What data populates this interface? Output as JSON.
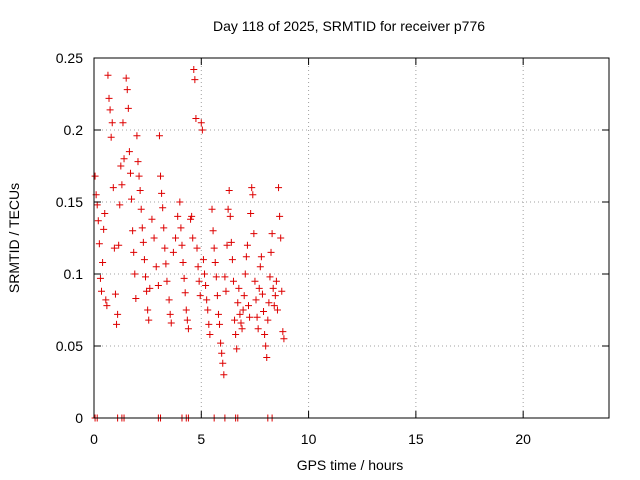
{
  "chart_data": {
    "type": "scatter",
    "title": "Day 118 of 2025, SRMTID for receiver p776",
    "xlabel": "GPS time / hours",
    "ylabel": "SRMTID / TECUs",
    "xlim": [
      0,
      24
    ],
    "ylim": [
      0,
      0.25
    ],
    "xticks": [
      0,
      5,
      10,
      15,
      20
    ],
    "xtick_labels": [
      "0",
      "5",
      "10",
      "15",
      "20"
    ],
    "yticks": [
      0,
      0.05,
      0.1,
      0.15,
      0.2,
      0.25
    ],
    "ytick_labels": [
      "0",
      "0.05",
      "0.1",
      "0.15",
      "0.2",
      "0.25"
    ],
    "grid": true,
    "marker": "+",
    "series": [
      {
        "name": "SRMTID",
        "color": "#dd0000",
        "points": [
          [
            0.05,
            0.168
          ],
          [
            0.1,
            0.155
          ],
          [
            0.15,
            0.148
          ],
          [
            0.2,
            0.137
          ],
          [
            0.25,
            0.121
          ],
          [
            0.3,
            0.097
          ],
          [
            0.35,
            0.088
          ],
          [
            0.4,
            0.108
          ],
          [
            0.45,
            0.131
          ],
          [
            0.5,
            0.142
          ],
          [
            0.55,
            0.082
          ],
          [
            0.6,
            0.078
          ],
          [
            0.65,
            0.238
          ],
          [
            0.7,
            0.222
          ],
          [
            0.75,
            0.214
          ],
          [
            0.8,
            0.195
          ],
          [
            0.85,
            0.205
          ],
          [
            0.9,
            0.16
          ],
          [
            0.95,
            0.118
          ],
          [
            1.0,
            0.086
          ],
          [
            1.05,
            0.065
          ],
          [
            1.1,
            0.072
          ],
          [
            1.15,
            0.12
          ],
          [
            1.2,
            0.148
          ],
          [
            1.25,
            0.175
          ],
          [
            1.3,
            0.162
          ],
          [
            1.35,
            0.205
          ],
          [
            1.4,
            0.18
          ],
          [
            1.5,
            0.236
          ],
          [
            1.55,
            0.228
          ],
          [
            1.6,
            0.215
          ],
          [
            1.65,
            0.185
          ],
          [
            1.7,
            0.17
          ],
          [
            1.75,
            0.152
          ],
          [
            1.8,
            0.13
          ],
          [
            1.85,
            0.115
          ],
          [
            1.9,
            0.1
          ],
          [
            1.95,
            0.083
          ],
          [
            2.0,
            0.196
          ],
          [
            2.05,
            0.178
          ],
          [
            2.1,
            0.168
          ],
          [
            2.15,
            0.158
          ],
          [
            2.2,
            0.145
          ],
          [
            2.25,
            0.132
          ],
          [
            2.3,
            0.122
          ],
          [
            2.35,
            0.11
          ],
          [
            2.4,
            0.098
          ],
          [
            2.45,
            0.088
          ],
          [
            2.5,
            0.075
          ],
          [
            2.55,
            0.068
          ],
          [
            2.6,
            0.09
          ],
          [
            2.7,
            0.138
          ],
          [
            2.8,
            0.125
          ],
          [
            2.9,
            0.105
          ],
          [
            3.0,
            0.092
          ],
          [
            3.05,
            0.196
          ],
          [
            3.1,
            0.168
          ],
          [
            3.15,
            0.156
          ],
          [
            3.2,
            0.146
          ],
          [
            3.25,
            0.132
          ],
          [
            3.3,
            0.118
          ],
          [
            3.35,
            0.107
          ],
          [
            3.4,
            0.095
          ],
          [
            3.5,
            0.082
          ],
          [
            3.55,
            0.072
          ],
          [
            3.6,
            0.066
          ],
          [
            3.7,
            0.115
          ],
          [
            3.8,
            0.125
          ],
          [
            3.9,
            0.14
          ],
          [
            4.0,
            0.15
          ],
          [
            4.05,
            0.132
          ],
          [
            4.1,
            0.12
          ],
          [
            4.15,
            0.108
          ],
          [
            4.2,
            0.097
          ],
          [
            4.25,
            0.087
          ],
          [
            4.3,
            0.075
          ],
          [
            4.35,
            0.068
          ],
          [
            4.4,
            0.062
          ],
          [
            4.5,
            0.138
          ],
          [
            4.55,
            0.14
          ],
          [
            4.6,
            0.125
          ],
          [
            4.65,
            0.242
          ],
          [
            4.7,
            0.235
          ],
          [
            4.75,
            0.208
          ],
          [
            4.8,
            0.118
          ],
          [
            4.85,
            0.105
          ],
          [
            4.9,
            0.095
          ],
          [
            4.95,
            0.085
          ],
          [
            5.0,
            0.205
          ],
          [
            5.05,
            0.2
          ],
          [
            5.1,
            0.11
          ],
          [
            5.15,
            0.1
          ],
          [
            5.2,
            0.092
          ],
          [
            5.25,
            0.082
          ],
          [
            5.3,
            0.075
          ],
          [
            5.35,
            0.065
          ],
          [
            5.4,
            0.058
          ],
          [
            5.5,
            0.145
          ],
          [
            5.55,
            0.13
          ],
          [
            5.6,
            0.118
          ],
          [
            5.65,
            0.108
          ],
          [
            5.7,
            0.098
          ],
          [
            5.75,
            0.085
          ],
          [
            5.8,
            0.072
          ],
          [
            5.85,
            0.065
          ],
          [
            5.9,
            0.052
          ],
          [
            5.95,
            0.045
          ],
          [
            6.0,
            0.038
          ],
          [
            6.05,
            0.03
          ],
          [
            6.1,
            0.098
          ],
          [
            6.15,
            0.088
          ],
          [
            6.2,
            0.12
          ],
          [
            6.25,
            0.145
          ],
          [
            6.3,
            0.158
          ],
          [
            6.35,
            0.14
          ],
          [
            6.4,
            0.122
          ],
          [
            6.45,
            0.11
          ],
          [
            6.5,
            0.095
          ],
          [
            6.55,
            0.068
          ],
          [
            6.6,
            0.058
          ],
          [
            6.65,
            0.048
          ],
          [
            6.7,
            0.08
          ],
          [
            6.75,
            0.09
          ],
          [
            6.8,
            0.072
          ],
          [
            6.85,
            0.066
          ],
          [
            6.9,
            0.062
          ],
          [
            6.95,
            0.075
          ],
          [
            7.0,
            0.085
          ],
          [
            7.05,
            0.1
          ],
          [
            7.1,
            0.112
          ],
          [
            7.15,
            0.12
          ],
          [
            7.2,
            0.078
          ],
          [
            7.25,
            0.07
          ],
          [
            7.3,
            0.142
          ],
          [
            7.35,
            0.16
          ],
          [
            7.4,
            0.155
          ],
          [
            7.45,
            0.128
          ],
          [
            7.5,
            0.095
          ],
          [
            7.55,
            0.082
          ],
          [
            7.6,
            0.07
          ],
          [
            7.65,
            0.062
          ],
          [
            7.7,
            0.09
          ],
          [
            7.75,
            0.105
          ],
          [
            7.8,
            0.112
          ],
          [
            7.85,
            0.086
          ],
          [
            7.9,
            0.074
          ],
          [
            7.95,
            0.058
          ],
          [
            8.0,
            0.05
          ],
          [
            8.05,
            0.042
          ],
          [
            8.1,
            0.068
          ],
          [
            8.15,
            0.08
          ],
          [
            8.2,
            0.098
          ],
          [
            8.25,
            0.115
          ],
          [
            8.3,
            0.128
          ],
          [
            8.35,
            0.09
          ],
          [
            8.4,
            0.078
          ],
          [
            8.45,
            0.085
          ],
          [
            8.5,
            0.095
          ],
          [
            8.55,
            0.075
          ],
          [
            8.6,
            0.16
          ],
          [
            8.65,
            0.14
          ],
          [
            8.7,
            0.125
          ],
          [
            8.75,
            0.088
          ],
          [
            8.8,
            0.06
          ],
          [
            8.85,
            0.055
          ]
        ],
        "zero_points_x": [
          0.05,
          0.15,
          1.1,
          1.3,
          1.4,
          3.0,
          3.1,
          4.1,
          4.3,
          4.4,
          5.6,
          6.1,
          6.6,
          6.7,
          8.1,
          8.3
        ]
      }
    ]
  }
}
